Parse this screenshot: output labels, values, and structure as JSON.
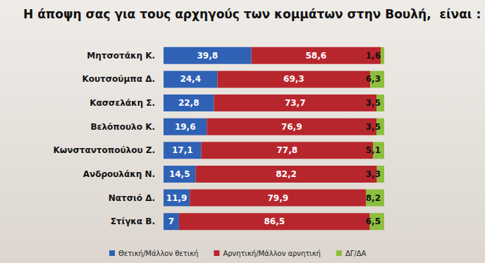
{
  "chart_data": {
    "type": "bar",
    "title": "Η άποψη σας για τους αρχηγούς των κομμάτων στην Βουλή,  είναι :",
    "orientation": "horizontal",
    "stacked": true,
    "data_labels": true,
    "legend": "bottom",
    "tick_labels": "y",
    "xlim": [
      0,
      100
    ],
    "categories": [
      "Μητσοτάκη Κ.",
      "Κουτσούμπα Δ.",
      "Κασσελάκη Σ.",
      "Βελόπουλο Κ.",
      "Κωνσταντοπούλου Ζ.",
      "Ανδρουλάκη Ν.",
      "Νατσιό Δ.",
      "Στίγκα Β."
    ],
    "series": [
      {
        "name": "Θετική/Μάλλον θετική",
        "color": "#2f62b5",
        "values": [
          39.8,
          24.4,
          22.8,
          19.6,
          17.1,
          14.5,
          11.9,
          7
        ],
        "value_labels": [
          "39,8",
          "24,4",
          "22,8",
          "19,6",
          "17,1",
          "14,5",
          "11,9",
          "7"
        ]
      },
      {
        "name": "Αρνητική/Μάλλον αρνητική",
        "color": "#b8262d",
        "values": [
          58.6,
          69.3,
          73.7,
          76.9,
          77.8,
          82.2,
          79.9,
          86.5
        ],
        "value_labels": [
          "58,6",
          "69,3",
          "73,7",
          "76,9",
          "77,8",
          "82,2",
          "79,9",
          "86,5"
        ]
      },
      {
        "name": "ΔΓ/ΔΑ",
        "color": "#8dbf3d",
        "values": [
          1.6,
          6.3,
          3.5,
          3.5,
          5.1,
          3.3,
          8.2,
          6.5
        ],
        "value_labels": [
          "1,6",
          "6,3",
          "3,5",
          "3,5",
          "5,1",
          "3,3",
          "8,2",
          "6,5"
        ]
      }
    ]
  }
}
